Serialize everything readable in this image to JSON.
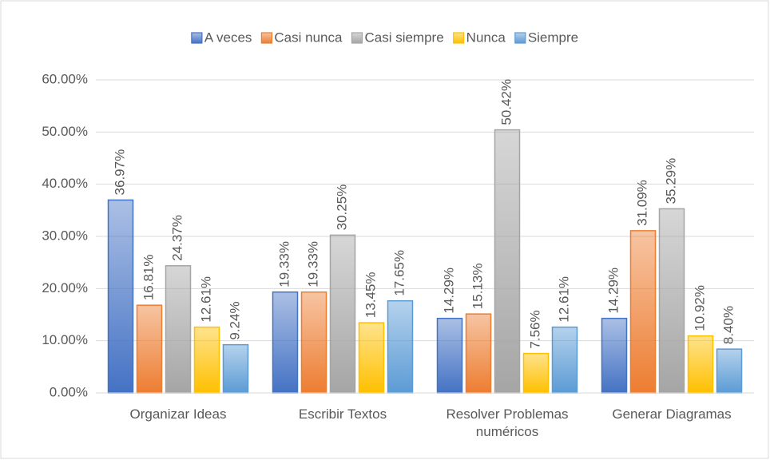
{
  "chart_data": {
    "type": "bar",
    "categories": [
      "Organizar Ideas",
      "Escribir Textos",
      "Resolver Problemas numéricos",
      "Generar Diagramas"
    ],
    "series": [
      {
        "name": "A veces",
        "color": "#4472c4",
        "values": [
          36.97,
          19.33,
          14.29,
          14.29
        ],
        "value_labels": [
          "36.97%",
          "19.33%",
          "14.29%",
          "14.29%"
        ]
      },
      {
        "name": "Casi nunca",
        "color": "#ed7d31",
        "values": [
          16.81,
          19.33,
          15.13,
          31.09
        ],
        "value_labels": [
          "16.81%",
          "19.33%",
          "15.13%",
          "31.09%"
        ]
      },
      {
        "name": "Casi siempre",
        "color": "#a5a5a5",
        "values": [
          24.37,
          30.25,
          50.42,
          35.29
        ],
        "value_labels": [
          "24.37%",
          "30.25%",
          "50.42%",
          "35.29%"
        ]
      },
      {
        "name": "Nunca",
        "color": "#ffc000",
        "values": [
          12.61,
          13.45,
          7.56,
          10.92
        ],
        "value_labels": [
          "12.61%",
          "13.45%",
          "7.56%",
          "10.92%"
        ]
      },
      {
        "name": "Siempre",
        "color": "#5b9bd5",
        "values": [
          9.24,
          17.65,
          12.61,
          8.4
        ],
        "value_labels": [
          "9.24%",
          "17.65%",
          "12.61%",
          "8.40%"
        ]
      }
    ],
    "ylim": [
      0,
      60
    ],
    "yticks": [
      {
        "value": 0,
        "label": "0.00%"
      },
      {
        "value": 10,
        "label": "10.00%"
      },
      {
        "value": 20,
        "label": "20.00%"
      },
      {
        "value": 30,
        "label": "30.00%"
      },
      {
        "value": 40,
        "label": "40.00%"
      },
      {
        "value": 50,
        "label": "50.00%"
      },
      {
        "value": 60,
        "label": "60.00%"
      }
    ],
    "grid": true,
    "legend": "top"
  }
}
